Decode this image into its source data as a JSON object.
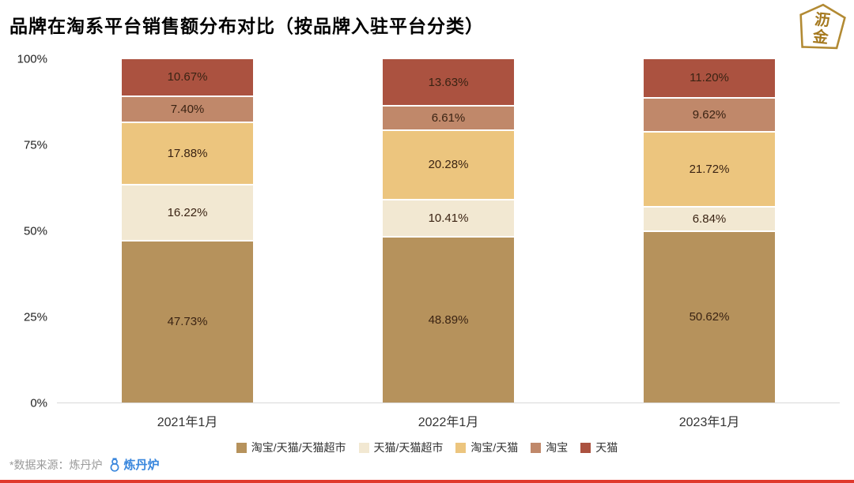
{
  "title": "品牌在淘系平台销售额分布对比（按品牌入驻平台分类）",
  "logo": {
    "line1": "沥",
    "line2": "金"
  },
  "chart_data": {
    "type": "bar",
    "stacked": true,
    "percent": true,
    "title": "品牌在淘系平台销售额分布对比（按品牌入驻平台分类）",
    "categories": [
      "2021年1月",
      "2022年1月",
      "2023年1月"
    ],
    "series": [
      {
        "name": "淘宝/天猫/天猫超市",
        "color": "#b6925c",
        "values": [
          47.73,
          48.89,
          50.62
        ]
      },
      {
        "name": "天猫/天猫超市",
        "color": "#f2e8d2",
        "values": [
          16.22,
          10.41,
          6.84
        ]
      },
      {
        "name": "淘宝/天猫",
        "color": "#ecc57e",
        "values": [
          17.88,
          20.28,
          21.72
        ]
      },
      {
        "name": "淘宝",
        "color": "#c0886a",
        "values": [
          7.4,
          6.61,
          9.62
        ]
      },
      {
        "name": "天猫",
        "color": "#ab5240",
        "values": [
          10.67,
          13.63,
          11.2
        ]
      }
    ],
    "y_ticks": [
      "100%",
      "75%",
      "50%",
      "25%",
      "0%"
    ],
    "ylim": [
      0,
      100
    ],
    "xlabel": "",
    "ylabel": "",
    "grid": false,
    "legend_position": "bottom",
    "value_label_format": "0.00%"
  },
  "footer": {
    "source_label": "*数据来源：炼丹炉",
    "logo_text": "炼丹炉"
  },
  "accent": {
    "bottom_bar_color": "#e0392d",
    "logo_gold": "#ab8228",
    "source_blue": "#3a87dd"
  }
}
